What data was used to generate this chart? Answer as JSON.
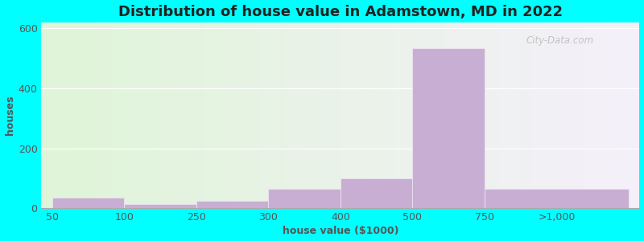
{
  "title": "Distribution of house value in Adamstown, MD in 2022",
  "xlabel": "house value ($1000)",
  "ylabel": "houses",
  "tick_labels": [
    "50",
    "100",
    "250",
    "300",
    "400",
    "500",
    "750",
    ">1,000"
  ],
  "tick_positions": [
    0,
    1,
    2,
    3,
    4,
    5,
    6,
    7
  ],
  "bar_lefts": [
    0,
    1,
    2,
    3,
    4,
    5,
    6
  ],
  "bar_widths": [
    1,
    1,
    1,
    1,
    1,
    1,
    2
  ],
  "bar_values": [
    35,
    15,
    25,
    65,
    100,
    535,
    65
  ],
  "bar_color": "#c9aed4",
  "bar_edge_color": "#f0e8f5",
  "yticks": [
    0,
    200,
    400,
    600
  ],
  "ylim": [
    0,
    620
  ],
  "xlim": [
    -0.15,
    8.15
  ],
  "title_fontsize": 13,
  "label_fontsize": 9,
  "tick_fontsize": 9,
  "bg_color_left": "#dff5d8",
  "bg_color_right": "#f5f0fa",
  "outer_bg": "#00ffff",
  "watermark": "City-Data.com"
}
